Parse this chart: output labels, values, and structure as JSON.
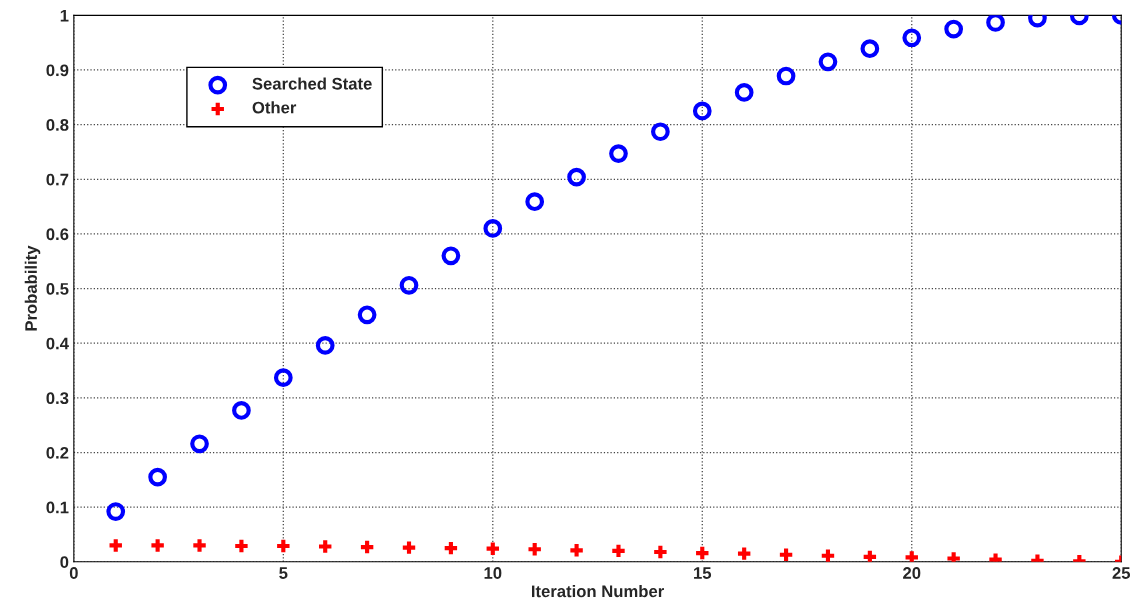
{
  "chart_data": {
    "type": "scatter",
    "xlabel": "Iteration Number",
    "ylabel": "Probability",
    "x": [
      1,
      2,
      3,
      4,
      5,
      6,
      7,
      8,
      9,
      10,
      11,
      12,
      13,
      14,
      15,
      16,
      17,
      18,
      19,
      20,
      21,
      22,
      23,
      24,
      25
    ],
    "series": [
      {
        "name": "Searched State",
        "color": "#0000ff",
        "marker": "circle",
        "values": [
          0.092,
          0.155,
          0.216,
          0.277,
          0.337,
          0.396,
          0.452,
          0.506,
          0.56,
          0.61,
          0.659,
          0.704,
          0.747,
          0.787,
          0.825,
          0.859,
          0.889,
          0.915,
          0.939,
          0.959,
          0.975,
          0.987,
          0.995,
          0.999,
          1.0
        ]
      },
      {
        "name": "Other",
        "color": "#ff0000",
        "marker": "cross",
        "values": [
          0.03,
          0.03,
          0.03,
          0.029,
          0.029,
          0.028,
          0.027,
          0.026,
          0.025,
          0.024,
          0.023,
          0.021,
          0.02,
          0.018,
          0.016,
          0.015,
          0.013,
          0.011,
          0.009,
          0.008,
          0.006,
          0.004,
          0.002,
          0.001,
          0.0
        ]
      }
    ],
    "xlim": [
      0,
      25
    ],
    "xticks": [
      0,
      5,
      10,
      15,
      20,
      25
    ],
    "ylim": [
      0,
      1
    ],
    "yticks": [
      0,
      0.1,
      0.2,
      0.3,
      0.4,
      0.5,
      0.6,
      0.7,
      0.8,
      0.9,
      1
    ],
    "grid": true,
    "legend": "top left"
  }
}
